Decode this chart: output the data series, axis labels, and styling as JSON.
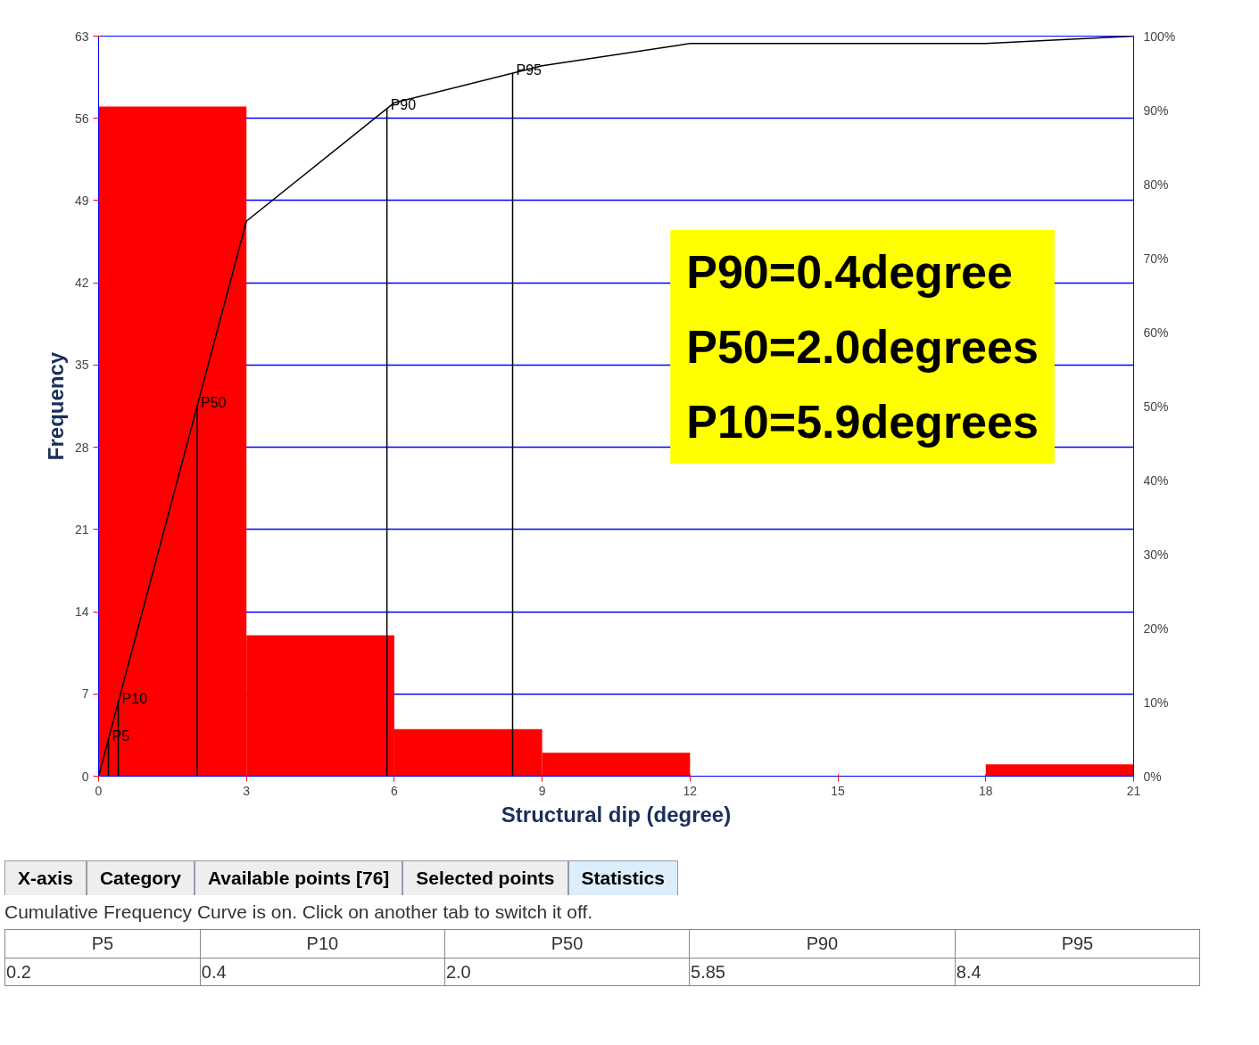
{
  "chart_data": {
    "type": "histogram",
    "xlabel": "Structural dip (degree)",
    "ylabel": "Frequency",
    "bins": [
      0,
      3,
      6,
      9,
      12,
      15,
      18,
      21
    ],
    "values": [
      57,
      12,
      4,
      2,
      0,
      0,
      1
    ],
    "color": "#ff0000",
    "series": [
      {
        "type": "line",
        "x": [
          0,
          3,
          6,
          9,
          12,
          15,
          18,
          21
        ],
        "values": [
          0,
          75,
          91,
          96,
          99,
          99,
          99,
          100
        ],
        "axis": "y2",
        "color": "#000000"
      }
    ],
    "xlim": [
      0,
      21
    ],
    "xticks": [
      0,
      3,
      6,
      9,
      12,
      15,
      18,
      21
    ],
    "ylim": [
      0,
      63
    ],
    "yticks": [
      0,
      7,
      14,
      21,
      28,
      35,
      42,
      49,
      56,
      63
    ],
    "y2lim": [
      0,
      100
    ],
    "y2ticks": [
      {
        "value": 0,
        "label": "0%"
      },
      {
        "value": 10,
        "label": "10%"
      },
      {
        "value": 20,
        "label": "20%"
      },
      {
        "value": 30,
        "label": "30%"
      },
      {
        "value": 40,
        "label": "40%"
      },
      {
        "value": 50,
        "label": "50%"
      },
      {
        "value": 60,
        "label": "60%"
      },
      {
        "value": 70,
        "label": "70%"
      },
      {
        "value": 80,
        "label": "80%"
      },
      {
        "value": 90,
        "label": "90%"
      },
      {
        "value": 100,
        "label": "100%"
      }
    ],
    "ref_lines": [
      {
        "axis": "x",
        "value": 0.2,
        "label": "P5",
        "color": "#000000"
      },
      {
        "axis": "x",
        "value": 0.4,
        "label": "P10",
        "color": "#000000"
      },
      {
        "axis": "x",
        "value": 2.0,
        "label": "P50",
        "color": "#000000"
      },
      {
        "axis": "x",
        "value": 5.85,
        "label": "P90",
        "color": "#000000"
      },
      {
        "axis": "x",
        "value": 8.4,
        "label": "P95",
        "color": "#000000"
      }
    ],
    "grid": "y",
    "annotations": [
      "P90=0.4degree",
      "P50=2.0degrees",
      "P10=5.9degrees",
      "X-axis",
      "Category",
      "Available  points [76]",
      "Selected points",
      "Statistics",
      "Cumulative Frequency Curve is on.  Click on another tab to switch it off.",
      "P5",
      "P10",
      "P50",
      "P90",
      "P95",
      "0.2",
      "0.4",
      "2.0",
      "5.85",
      "8.4"
    ]
  }
}
